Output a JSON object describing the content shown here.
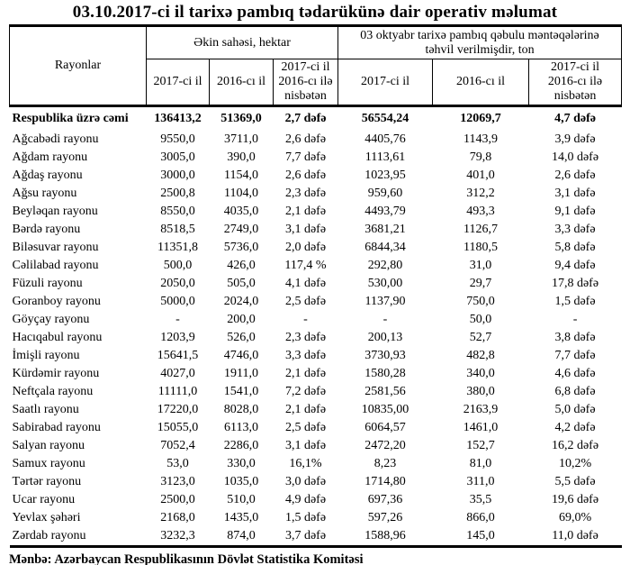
{
  "title": "03.10.2017-ci il tarixə pambıq tədarükünə dair operativ məlumat",
  "source": "Mənbə: Azərbaycan Respublikasının Dövlət Statistika Komitəsi",
  "table": {
    "col_rayonlar": "Rayonlar",
    "group_ekin": "Əkin sahəsi, hektar",
    "group_tehvil": "03 oktyabr tarixə pambıq qəbulu məntəqələrinə\ntəhvil verilmişdir, ton",
    "sub": [
      "2017-ci il",
      "2016-cı il",
      "2017-ci il\n2016-cı ilə\nnisbətən",
      "2017-ci il",
      "2016-cı il",
      "2017-ci il\n2016-cı ilə\nnisbətən"
    ],
    "total": {
      "name": "Respublika üzrə cəmi",
      "values": [
        "136413,2",
        "51369,0",
        "2,7 dəfə",
        "56554,24",
        "12069,7",
        "4,7 dəfə"
      ]
    },
    "rows": [
      {
        "name": "Ağcabədi rayonu",
        "values": [
          "9550,0",
          "3711,0",
          "2,6 dəfə",
          "4405,76",
          "1143,9",
          "3,9 dəfə"
        ]
      },
      {
        "name": "Ağdam rayonu",
        "values": [
          "3005,0",
          "390,0",
          "7,7 dəfə",
          "1113,61",
          "79,8",
          "14,0 dəfə"
        ]
      },
      {
        "name": "Ağdaş rayonu",
        "values": [
          "3000,0",
          "1154,0",
          "2,6 dəfə",
          "1023,95",
          "401,0",
          "2,6 dəfə"
        ]
      },
      {
        "name": "Ağsu rayonu",
        "values": [
          "2500,8",
          "1104,0",
          "2,3 dəfə",
          "959,60",
          "312,2",
          "3,1 dəfə"
        ]
      },
      {
        "name": "Beyləqan rayonu",
        "values": [
          "8550,0",
          "4035,0",
          "2,1 dəfə",
          "4493,79",
          "493,3",
          "9,1 dəfə"
        ]
      },
      {
        "name": "Bərdə rayonu",
        "values": [
          "8518,5",
          "2749,0",
          "3,1 dəfə",
          "3681,21",
          "1126,7",
          "3,3 dəfə"
        ]
      },
      {
        "name": "Biləsuvar rayonu",
        "values": [
          "11351,8",
          "5736,0",
          "2,0 dəfə",
          "6844,34",
          "1180,5",
          "5,8 dəfə"
        ]
      },
      {
        "name": "Cəlilabad rayonu",
        "values": [
          "500,0",
          "426,0",
          "117,4 %",
          "292,80",
          "31,0",
          "9,4 dəfə"
        ]
      },
      {
        "name": "Füzuli rayonu",
        "values": [
          "2050,0",
          "505,0",
          "4,1 dəfə",
          "530,00",
          "29,7",
          "17,8 dəfə"
        ]
      },
      {
        "name": "Goranboy rayonu",
        "values": [
          "5000,0",
          "2024,0",
          "2,5 dəfə",
          "1137,90",
          "750,0",
          "1,5 dəfə"
        ]
      },
      {
        "name": "Göyçay rayonu",
        "values": [
          "-",
          "200,0",
          "-",
          "-",
          "50,0",
          "-"
        ]
      },
      {
        "name": "Hacıqabul rayonu",
        "values": [
          "1203,9",
          "526,0",
          "2,3 dəfə",
          "200,13",
          "52,7",
          "3,8 dəfə"
        ]
      },
      {
        "name": "İmişli rayonu",
        "values": [
          "15641,5",
          "4746,0",
          "3,3 dəfə",
          "3730,93",
          "482,8",
          "7,7 dəfə"
        ]
      },
      {
        "name": "Kürdəmir rayonu",
        "values": [
          "4027,0",
          "1911,0",
          "2,1 dəfə",
          "1580,28",
          "340,0",
          "4,6 dəfə"
        ]
      },
      {
        "name": "Neftçala rayonu",
        "values": [
          "11111,0",
          "1541,0",
          "7,2 dəfə",
          "2581,56",
          "380,0",
          "6,8 dəfə"
        ]
      },
      {
        "name": "Saatlı rayonu",
        "values": [
          "17220,0",
          "8028,0",
          "2,1 dəfə",
          "10835,00",
          "2163,9",
          "5,0 dəfə"
        ]
      },
      {
        "name": "Sabirabad rayonu",
        "values": [
          "15055,0",
          "6113,0",
          "2,5 dəfə",
          "6064,57",
          "1461,0",
          "4,2 dəfə"
        ]
      },
      {
        "name": "Salyan rayonu",
        "values": [
          "7052,4",
          "2286,0",
          "3,1 dəfə",
          "2472,20",
          "152,7",
          "16,2 dəfə"
        ]
      },
      {
        "name": "Samux rayonu",
        "values": [
          "53,0",
          "330,0",
          "16,1%",
          "8,23",
          "81,0",
          "10,2%"
        ]
      },
      {
        "name": "Tərtər rayonu",
        "values": [
          "3123,0",
          "1035,0",
          "3,0 dəfə",
          "1714,80",
          "311,0",
          "5,5 dəfə"
        ]
      },
      {
        "name": "Ucar rayonu",
        "values": [
          "2500,0",
          "510,0",
          "4,9 dəfə",
          "697,36",
          "35,5",
          "19,6 dəfə"
        ]
      },
      {
        "name": "Yevlax şəhəri",
        "values": [
          "2168,0",
          "1435,0",
          "1,5 dəfə",
          "597,26",
          "866,0",
          "69,0%"
        ]
      },
      {
        "name": "Zərdab rayonu",
        "values": [
          "3232,3",
          "874,0",
          "3,7 dəfə",
          "1588,96",
          "145,0",
          "11,0 dəfə"
        ]
      }
    ]
  }
}
